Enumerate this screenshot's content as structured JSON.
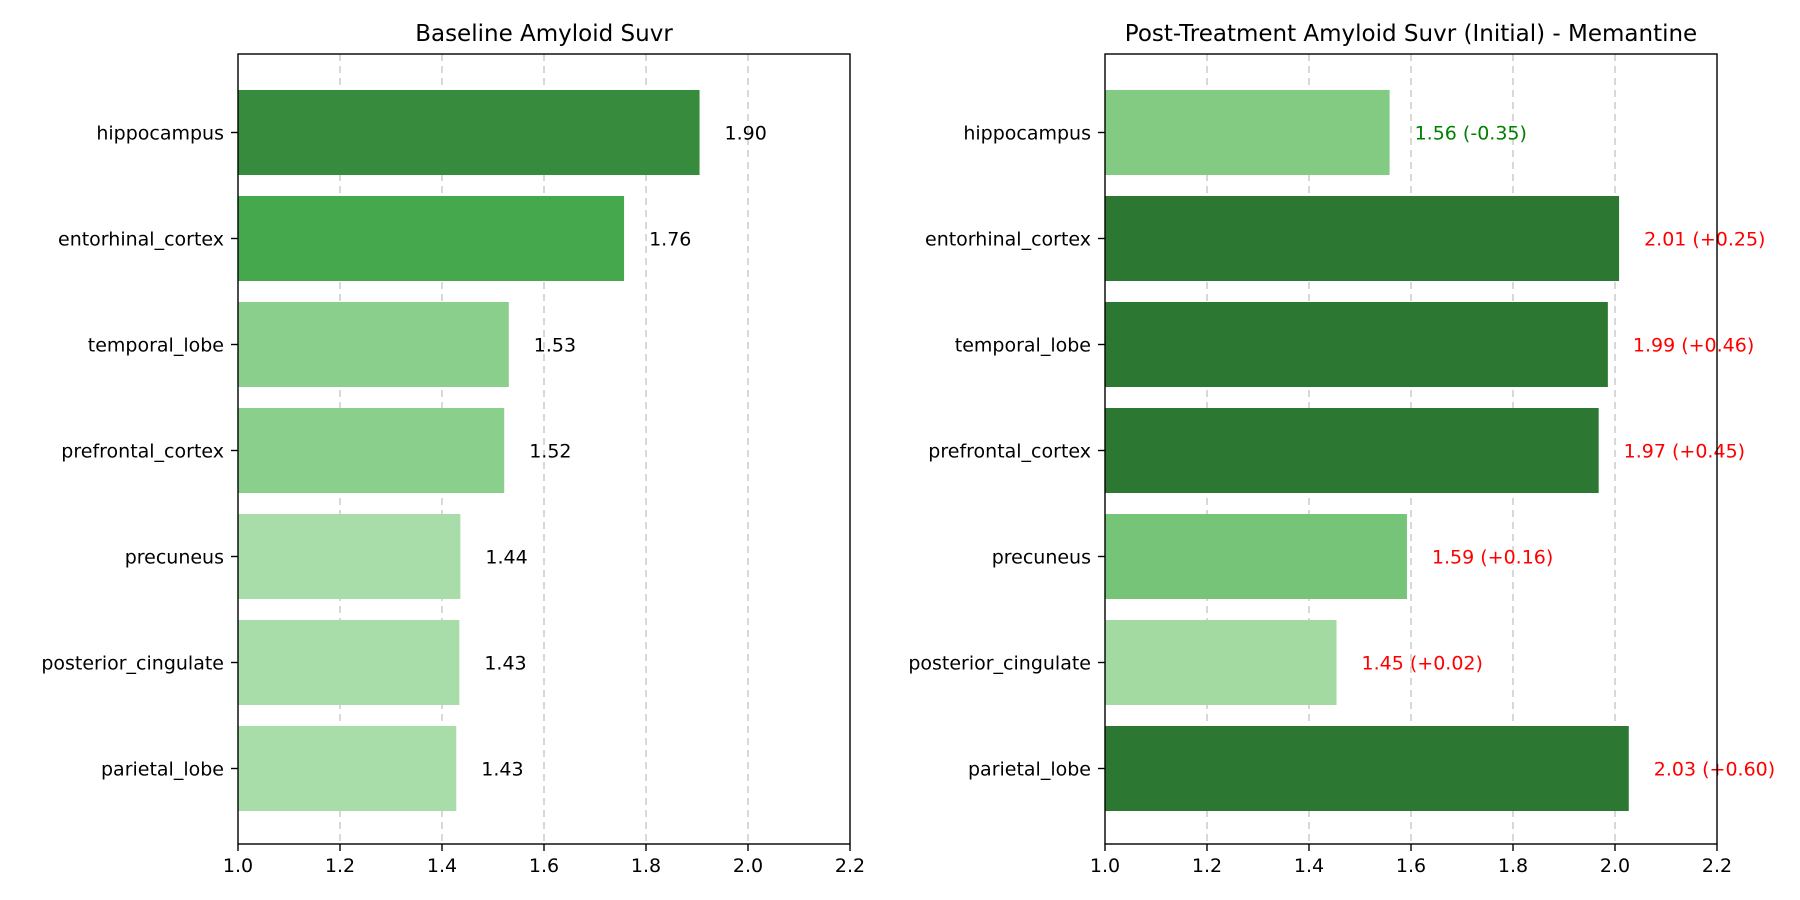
{
  "chart_data": [
    {
      "type": "bar",
      "orientation": "horizontal",
      "title": "Baseline Amyloid Suvr",
      "categories": [
        "hippocampus",
        "entorhinal_cortex",
        "temporal_lobe",
        "prefrontal_cortex",
        "precuneus",
        "posterior_cingulate",
        "parietal_lobe"
      ],
      "values": [
        1.905,
        1.757,
        1.531,
        1.522,
        1.436,
        1.434,
        1.428
      ],
      "value_labels": [
        "1.90",
        "1.76",
        "1.53",
        "1.52",
        "1.44",
        "1.43",
        "1.43"
      ],
      "label_colors": [
        "#000000",
        "#000000",
        "#000000",
        "#000000",
        "#000000",
        "#000000",
        "#000000"
      ],
      "bar_colors": [
        "#378b3c",
        "#46a84c",
        "#8acf8c",
        "#8acf8c",
        "#a8dca8",
        "#a8dca8",
        "#a8dca8"
      ],
      "xlim": [
        1.0,
        2.2
      ],
      "xticks": [
        "1.0",
        "1.2",
        "1.4",
        "1.6",
        "1.8",
        "2.0",
        "2.2"
      ],
      "grid": "x-dashed"
    },
    {
      "type": "bar",
      "orientation": "horizontal",
      "title": "Post-Treatment Amyloid Suvr (Initial) - Memantine",
      "categories": [
        "hippocampus",
        "entorhinal_cortex",
        "temporal_lobe",
        "prefrontal_cortex",
        "precuneus",
        "posterior_cingulate",
        "parietal_lobe"
      ],
      "values": [
        1.558,
        2.008,
        1.986,
        1.968,
        1.592,
        1.454,
        2.027
      ],
      "value_labels": [
        "1.56 (-0.35)",
        "2.01 (+0.25)",
        "1.99 (+0.46)",
        "1.97 (+0.45)",
        "1.59 (+0.16)",
        "1.45 (+0.02)",
        "2.03 (+0.60)"
      ],
      "label_colors": [
        "#008000",
        "#ff0000",
        "#ff0000",
        "#ff0000",
        "#ff0000",
        "#ff0000",
        "#ff0000"
      ],
      "bar_colors": [
        "#83ca83",
        "#2c7731",
        "#2c7731",
        "#2c7731",
        "#76c478",
        "#a3daa1",
        "#2c7731"
      ],
      "xlim": [
        1.0,
        2.2
      ],
      "xticks": [
        "1.0",
        "1.2",
        "1.4",
        "1.6",
        "1.8",
        "2.0",
        "2.2"
      ],
      "grid": "x-dashed"
    }
  ]
}
